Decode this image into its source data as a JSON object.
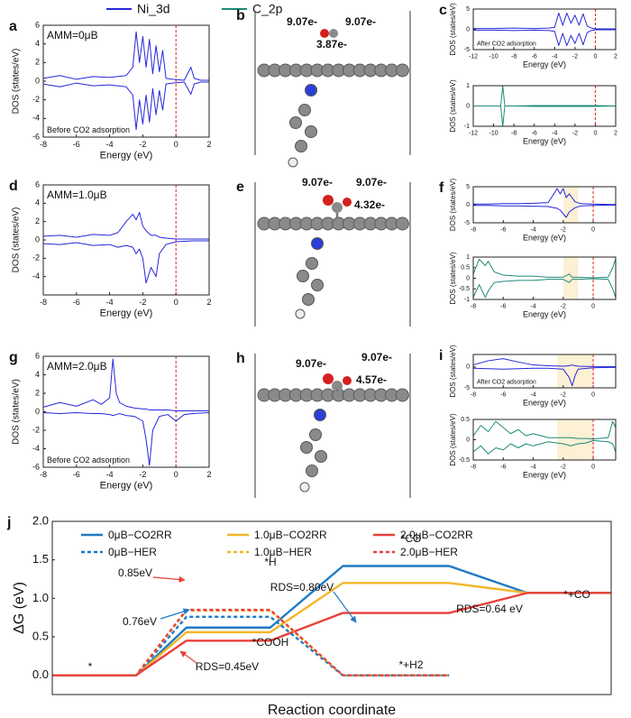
{
  "legend": [
    {
      "name": "Ni_3d",
      "color": "#2626d9"
    },
    {
      "name": "C_2p",
      "color": "#1f8a78"
    }
  ],
  "structures": [
    {
      "panel": "b",
      "labels": [
        "9.07e-",
        "9.07e-",
        "3.87e-"
      ]
    },
    {
      "panel": "e",
      "labels": [
        "9.07e-",
        "9.07e-",
        "4.32e-"
      ]
    },
    {
      "panel": "h",
      "labels": [
        "9.07e-",
        "9.07e-",
        "4.57e-"
      ]
    }
  ],
  "chart_data": [
    {
      "type": "line",
      "panel": "a",
      "xlabel": "Energy (eV)",
      "ylabel": "DOS (states/eV)",
      "annotations": [
        {
          "text": "AMM=0μB",
          "corner": "top-left"
        },
        {
          "text": "Before CO2 adsorption",
          "corner": "bottom-left"
        }
      ],
      "xlim": [
        -8,
        2
      ],
      "xticks": [
        -8,
        -6,
        -4,
        -2,
        0,
        2
      ],
      "ylim": [
        -6,
        6
      ],
      "yticks": [
        -6,
        -4,
        -2,
        0,
        2,
        4,
        6
      ],
      "vline": 0,
      "x": [
        -8,
        -7,
        -6,
        -5,
        -4,
        -3,
        -2.6,
        -2.4,
        -2.2,
        -2.0,
        -1.8,
        -1.6,
        -1.4,
        -1.2,
        -1.0,
        -0.8,
        -0.6,
        -0.2,
        0.5,
        0.9,
        1.1,
        1.5,
        2
      ],
      "series": [
        {
          "color": "#2626d9",
          "values": [
            0.3,
            0.6,
            0.2,
            0.5,
            0.4,
            0.6,
            1.5,
            5.3,
            2.0,
            4.8,
            1.5,
            4.5,
            0.8,
            3.8,
            1.0,
            3.3,
            0.3,
            0.2,
            0.1,
            1.5,
            0.3,
            0.1,
            0.1
          ]
        },
        {
          "color": "#2626d9",
          "values": [
            -0.3,
            -0.6,
            -0.2,
            -0.5,
            -0.4,
            -0.6,
            -1.5,
            -5.2,
            -2.0,
            -4.6,
            -1.5,
            -4.4,
            -0.8,
            -3.6,
            -1.0,
            -3.1,
            -0.3,
            -0.2,
            -0.1,
            -1.4,
            -0.3,
            -0.1,
            -0.1
          ]
        }
      ]
    },
    {
      "type": "line",
      "panel": "c",
      "xlabel": "Energy (eV)",
      "ylabel": "DOS (states/eV)",
      "annotations": [
        {
          "text": "After CO2 adsorption",
          "corner": "bottom-left"
        }
      ],
      "xlim": [
        -12,
        2
      ],
      "xticks": [
        -12,
        -10,
        -8,
        -6,
        -4,
        -2,
        0,
        2
      ],
      "ylim": [
        -5,
        5
      ],
      "yticks": [
        -5,
        0,
        5
      ],
      "vline": 0,
      "x": [
        -12,
        -10,
        -8,
        -6,
        -4.5,
        -4,
        -3.6,
        -3.2,
        -2.8,
        -2.4,
        -2,
        -1.6,
        -1.2,
        -0.8,
        -0.4,
        0,
        1,
        2
      ],
      "series": [
        {
          "color": "#2626d9",
          "values": [
            0.2,
            0.2,
            0.3,
            0.2,
            0.3,
            0.5,
            4,
            1,
            4,
            1.5,
            3.5,
            1,
            3.8,
            0.8,
            0.3,
            0.1,
            0.1,
            0.1
          ]
        },
        {
          "color": "#2626d9",
          "values": [
            -0.2,
            -0.2,
            -0.3,
            -0.2,
            -0.3,
            -0.5,
            -4,
            -1,
            -4,
            -1.5,
            -3.5,
            -1,
            -3.8,
            -0.8,
            -0.3,
            -0.1,
            -0.1,
            -0.1
          ]
        }
      ]
    },
    {
      "type": "line",
      "xlabel": "Energy (eV)",
      "ylabel": "DOS (states/eV)",
      "xlim": [
        -12,
        2
      ],
      "xticks": [
        -12,
        -10,
        -8,
        -6,
        -4,
        -2,
        0,
        2
      ],
      "ylim": [
        -1,
        1
      ],
      "yticks": [
        -1,
        0,
        1
      ],
      "vline": 0,
      "x": [
        -12,
        -10,
        -9.3,
        -9.1,
        -8.9,
        -8,
        -6,
        -4,
        -2,
        0,
        2
      ],
      "series": [
        {
          "color": "#1f8a78",
          "values": [
            0,
            0,
            0,
            1,
            0,
            0,
            0.02,
            0.02,
            0.02,
            0.02,
            0
          ]
        },
        {
          "color": "#1f8a78",
          "values": [
            0,
            0,
            0,
            -1,
            0,
            0,
            -0.02,
            -0.02,
            -0.02,
            -0.02,
            0
          ]
        }
      ]
    },
    {
      "type": "line",
      "panel": "d",
      "xlabel": "Energy (eV)",
      "ylabel": "DOS (states/eV)",
      "annotations": [
        {
          "text": "AMM=1.0μB",
          "corner": "top-left"
        }
      ],
      "xlim": [
        -8,
        2
      ],
      "xticks": [
        -8,
        -6,
        -4,
        -2,
        0,
        2
      ],
      "ylim": [
        -6,
        6
      ],
      "yticks": [
        -4,
        -2,
        0,
        2,
        4,
        6
      ],
      "vline": 0,
      "x": [
        -8,
        -7,
        -6,
        -5,
        -4,
        -3.5,
        -3,
        -2.6,
        -2.4,
        -2.2,
        -2,
        -1.8,
        -1.5,
        -1.2,
        -1,
        -0.6,
        0,
        1,
        2
      ],
      "series": [
        {
          "color": "#2626d9",
          "values": [
            0.4,
            0.5,
            0.3,
            0.6,
            0.5,
            0.8,
            2.0,
            2.8,
            2.2,
            3.0,
            1.5,
            1.0,
            0.5,
            0.5,
            0.3,
            0.2,
            0.1,
            0.1,
            0.1
          ]
        },
        {
          "color": "#2626d9",
          "values": [
            -0.4,
            -0.5,
            -0.3,
            -0.6,
            -0.5,
            -0.8,
            -0.6,
            -0.8,
            -1.5,
            -1.0,
            -2.0,
            -4.7,
            -3.0,
            -4.0,
            -1.5,
            -0.5,
            -0.2,
            -0.1,
            -0.1
          ]
        }
      ]
    },
    {
      "type": "line",
      "panel": "f",
      "xlabel": "Energy (eV)",
      "ylabel": "DOS (states/eV)",
      "xlim": [
        -8,
        1.5
      ],
      "xticks": [
        -8,
        -6,
        -4,
        -2,
        0
      ],
      "ylim": [
        -5,
        5
      ],
      "yticks": [
        -5,
        0,
        5
      ],
      "vline": 0,
      "highlight": [
        -2,
        -1
      ],
      "x": [
        -8,
        -7,
        -6,
        -5,
        -4,
        -3,
        -2.4,
        -2.2,
        -2,
        -1.8,
        -1.6,
        -1.2,
        -0.8,
        0,
        1,
        1.5
      ],
      "series": [
        {
          "color": "#2626d9",
          "values": [
            0.2,
            0.2,
            0.3,
            0.3,
            0.4,
            0.6,
            4.5,
            3,
            4.5,
            2,
            3,
            0.8,
            0.3,
            0.2,
            0.1,
            0.1
          ]
        },
        {
          "color": "#2626d9",
          "values": [
            -0.2,
            -0.2,
            -0.3,
            -0.3,
            -0.4,
            -0.5,
            -1.0,
            -1.5,
            -2.5,
            -3.5,
            -2.0,
            -0.8,
            -0.3,
            -0.2,
            -0.1,
            -0.1
          ]
        }
      ]
    },
    {
      "type": "line",
      "xlabel": "Energy (eV)",
      "ylabel": "DOS (states/eV)",
      "xlim": [
        -8,
        1.5
      ],
      "xticks": [
        -8,
        -6,
        -4,
        -2,
        0
      ],
      "ylim": [
        -1,
        1
      ],
      "yticks": [
        -1,
        -0.5,
        0,
        0.5,
        1
      ],
      "vline": 0,
      "highlight": [
        -2,
        -1
      ],
      "x": [
        -8,
        -7.6,
        -7.2,
        -7,
        -6.6,
        -6,
        -5,
        -4,
        -3,
        -2,
        -1.6,
        -1.4,
        -1,
        0,
        1,
        1.3,
        1.5
      ],
      "series": [
        {
          "color": "#1f8a78",
          "values": [
            0.2,
            0.9,
            0.6,
            0.8,
            0.3,
            0.15,
            0.1,
            0.1,
            0.05,
            0.05,
            0.2,
            0.05,
            0.05,
            0.02,
            0.05,
            0.5,
            0.9
          ]
        },
        {
          "color": "#1f8a78",
          "values": [
            -0.9,
            -0.3,
            -0.9,
            -0.6,
            -0.2,
            -0.15,
            -0.1,
            -0.1,
            -0.05,
            -0.05,
            -0.2,
            -0.05,
            -0.05,
            -0.02,
            -0.05,
            -0.5,
            -0.9
          ]
        }
      ]
    },
    {
      "type": "line",
      "panel": "g",
      "xlabel": "Energy (eV)",
      "ylabel": "DOS (states/eV)",
      "annotations": [
        {
          "text": "AMM=2.0μB",
          "corner": "top-left"
        },
        {
          "text": "Before CO2 adsorption",
          "corner": "bottom-left"
        }
      ],
      "xlim": [
        -8,
        2
      ],
      "xticks": [
        -8,
        -6,
        -4,
        -2,
        0,
        2
      ],
      "ylim": [
        -6,
        6
      ],
      "yticks": [
        -6,
        -4,
        -2,
        0,
        2,
        4,
        6
      ],
      "vline": 0,
      "x": [
        -8,
        -7,
        -6,
        -5,
        -4.5,
        -4,
        -3.8,
        -3.6,
        -3.4,
        -3,
        -2.5,
        -2,
        -1.8,
        -1.6,
        -1.4,
        -1,
        -0.5,
        0,
        0.5,
        1,
        2
      ],
      "series": [
        {
          "color": "#2626d9",
          "values": [
            0.5,
            1.0,
            0.6,
            1.3,
            0.8,
            1.5,
            5.7,
            2.0,
            1.0,
            0.6,
            0.4,
            0.3,
            0.3,
            0.2,
            0.2,
            0.2,
            0.2,
            0.1,
            0.1,
            0.1,
            0.1
          ]
        },
        {
          "color": "#2626d9",
          "values": [
            -0.1,
            -0.2,
            -0.1,
            -0.2,
            -0.2,
            -0.3,
            -0.4,
            -0.3,
            -0.2,
            -0.4,
            -0.5,
            -1.0,
            -3.0,
            -5.8,
            -2.0,
            -0.5,
            -0.3,
            -1.0,
            -0.3,
            -0.2,
            -0.1
          ]
        }
      ]
    },
    {
      "type": "line",
      "panel": "i",
      "xlabel": "Energy (eV)",
      "ylabel": "DOS (states/eV)",
      "annotations": [
        {
          "text": "After CO2 adsorption",
          "corner": "bottom-left"
        }
      ],
      "xlim": [
        -8,
        1.5
      ],
      "xticks": [
        -8,
        -6,
        -4,
        -2,
        0
      ],
      "ylim": [
        -5,
        3
      ],
      "yticks": [
        -5,
        0
      ],
      "vline": 0,
      "highlight": [
        -2.4,
        0
      ],
      "x": [
        -8,
        -7,
        -6,
        -5,
        -4,
        -3,
        -2,
        -1.6,
        -1.4,
        -1.2,
        -1,
        0,
        1,
        1.5
      ],
      "series": [
        {
          "color": "#2626d9",
          "values": [
            0.5,
            1.5,
            2.0,
            1.2,
            0.5,
            0.3,
            0.2,
            0.3,
            0.5,
            0.3,
            0.2,
            0.1,
            0.1,
            0.1
          ]
        },
        {
          "color": "#2626d9",
          "values": [
            -0.3,
            -0.4,
            -0.5,
            -0.4,
            -0.3,
            -0.3,
            -0.5,
            -2.5,
            -4.5,
            -2,
            -0.5,
            -0.2,
            -0.1,
            -0.1
          ]
        }
      ]
    },
    {
      "type": "line",
      "xlabel": "Energy (eV)",
      "ylabel": "DOS (states/eV)",
      "xlim": [
        -8,
        1.5
      ],
      "xticks": [
        -8,
        -6,
        -4,
        -2,
        0
      ],
      "ylim": [
        -0.5,
        0.5
      ],
      "yticks": [
        -0.5,
        0,
        0.5
      ],
      "vline": 0,
      "highlight": [
        -2.4,
        0
      ],
      "x": [
        -8,
        -7.5,
        -7,
        -6.5,
        -6,
        -5.5,
        -5,
        -4.5,
        -4,
        -3,
        -2,
        -1.5,
        -1,
        -0.5,
        0,
        1,
        1.3,
        1.5
      ],
      "series": [
        {
          "color": "#1f8a78",
          "values": [
            0.1,
            0.35,
            0.2,
            0.45,
            0.3,
            0.15,
            0.25,
            0.1,
            0.15,
            0.05,
            0.05,
            0.05,
            0.03,
            0.03,
            0.02,
            0.05,
            0.45,
            0.3
          ]
        },
        {
          "color": "#1f8a78",
          "values": [
            -0.3,
            -0.15,
            -0.35,
            -0.2,
            -0.25,
            -0.1,
            -0.2,
            -0.1,
            -0.15,
            -0.05,
            -0.1,
            -0.15,
            -0.1,
            -0.08,
            -0.02,
            -0.05,
            -0.1,
            -0.3
          ]
        }
      ]
    },
    {
      "type": "line",
      "panel": "j",
      "xlabel": "Reaction coordinate",
      "ylabel": "ΔG (eV)",
      "xlim": [
        0,
        10
      ],
      "ylim": [
        -0.25,
        2.0
      ],
      "yticks": [
        {
          "value": 0,
          "label": "0.0"
        },
        0.5,
        {
          "value": 1,
          "label": "1.0"
        },
        1.5,
        {
          "value": 2,
          "label": "2.0"
        }
      ],
      "legend": true,
      "series": [
        {
          "name": "0μB−CO2RR",
          "color": "#1f7ac4",
          "x": [
            0,
            1.5,
            2.4,
            3.9,
            5.2,
            7.1,
            8.5,
            10
          ],
          "values": [
            0,
            0,
            0.62,
            0.62,
            1.42,
            1.42,
            1.07,
            1.07
          ]
        },
        {
          "name": "1.0μB−CO2RR",
          "color": "#f2b62a",
          "x": [
            0,
            1.5,
            2.4,
            3.9,
            5.2,
            7.1,
            8.5,
            10
          ],
          "values": [
            0,
            0,
            0.56,
            0.56,
            1.2,
            1.2,
            1.07,
            1.07
          ]
        },
        {
          "name": "2.0μB−CO2RR",
          "color": "#e8413c",
          "x": [
            0,
            1.5,
            2.4,
            3.9,
            5.2,
            7.1,
            8.5,
            10
          ],
          "values": [
            0,
            0,
            0.45,
            0.45,
            0.81,
            0.81,
            1.07,
            1.07
          ]
        },
        {
          "name": "0μB−HER",
          "color": "#1f7ac4",
          "dash": true,
          "x": [
            0,
            1.5,
            2.4,
            3.9,
            5.2,
            7.1
          ],
          "values": [
            0,
            0,
            0.76,
            0.76,
            0,
            0
          ]
        },
        {
          "name": "1.0μB−HER",
          "color": "#f2b62a",
          "dash": true,
          "x": [
            0,
            1.5,
            2.4,
            3.9,
            5.2,
            7.1
          ],
          "values": [
            0,
            0,
            0.84,
            0.84,
            0,
            0
          ]
        },
        {
          "name": "2.0μB−HER",
          "color": "#e8413c",
          "dash": true,
          "x": [
            0,
            1.5,
            2.4,
            3.9,
            5.2,
            7.1
          ],
          "values": [
            0,
            0,
            0.85,
            0.85,
            0,
            0
          ]
        }
      ],
      "annotations": [
        {
          "text": "*",
          "color": "#111111"
        },
        {
          "text": "*H",
          "color": "#111111"
        },
        {
          "text": "*COOH",
          "color": "#111111"
        },
        {
          "text": "*CO",
          "color": "#111111"
        },
        {
          "text": "*+CO",
          "color": "#111111"
        },
        {
          "text": "*+H2",
          "color": "#111111"
        },
        {
          "text": "RDS=0.80eV",
          "color": "#1f7ac4"
        },
        {
          "text": "RDS=0.64 eV",
          "color": "#f2b62a"
        },
        {
          "text": "RDS=0.45eV",
          "color": "#e8413c"
        },
        {
          "text": "0.85eV",
          "color": "#e8413c"
        },
        {
          "text": "0.76eV",
          "color": "#1f7ac4"
        }
      ]
    }
  ]
}
